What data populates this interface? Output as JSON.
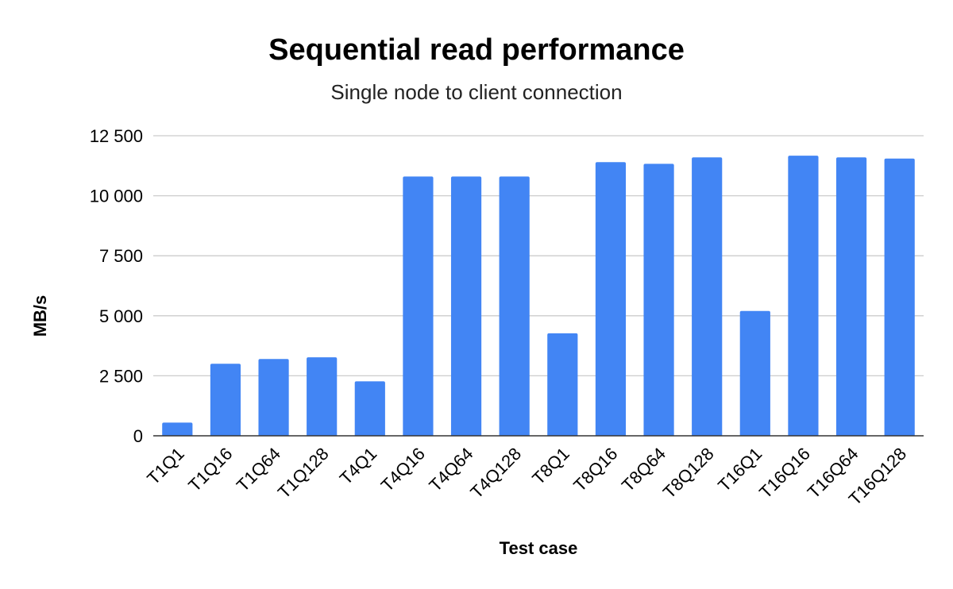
{
  "chart_data": {
    "type": "bar",
    "title": "Sequential read performance",
    "subtitle": "Single node to client connection",
    "xlabel": "Test case",
    "ylabel": "MB/s",
    "categories": [
      "T1Q1",
      "T1Q16",
      "T1Q64",
      "T1Q128",
      "T4Q1",
      "T4Q16",
      "T4Q64",
      "T4Q128",
      "T8Q1",
      "T8Q16",
      "T8Q64",
      "T8Q128",
      "T16Q1",
      "T16Q16",
      "T16Q64",
      "T16Q128"
    ],
    "values": [
      550,
      3000,
      3200,
      3270,
      2270,
      10800,
      10800,
      10800,
      4270,
      11400,
      11330,
      11600,
      5200,
      11670,
      11600,
      11550
    ],
    "ylim": [
      0,
      12500
    ],
    "yticks": [
      0,
      2500,
      5000,
      7500,
      10000,
      12500
    ],
    "ytick_labels": [
      "0",
      "2 500",
      "5 000",
      "7 500",
      "10 000",
      "12 500"
    ],
    "grid": true,
    "legend": "none",
    "colors": {
      "bar": "#4285f4",
      "grid": "#cccccc",
      "baseline": "#333333"
    }
  }
}
